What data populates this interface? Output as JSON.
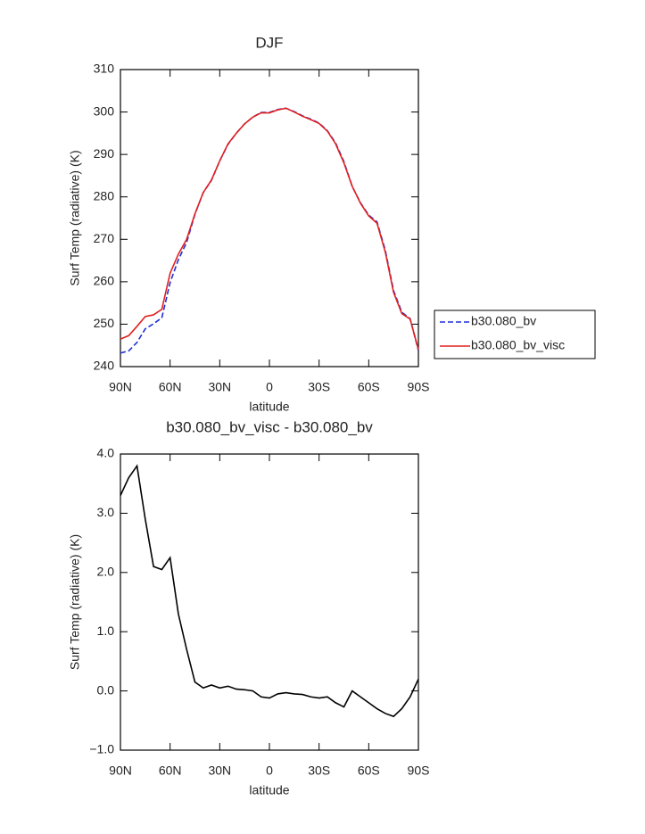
{
  "chart_data": [
    {
      "type": "line",
      "title": "DJF",
      "xlabel": "latitude",
      "ylabel": "Surf Temp (radiative) (K)",
      "x": [
        90,
        85,
        80,
        75,
        70,
        65,
        60,
        55,
        50,
        45,
        40,
        35,
        30,
        25,
        20,
        15,
        10,
        5,
        0,
        -5,
        -10,
        -15,
        -20,
        -25,
        -30,
        -35,
        -40,
        -45,
        -50,
        -55,
        -60,
        -65,
        -70,
        -75,
        -80,
        -85,
        -90
      ],
      "xlim": [
        90,
        -90
      ],
      "xticks": [
        {
          "value": 90,
          "label": "90N"
        },
        {
          "value": 60,
          "label": "60N"
        },
        {
          "value": 30,
          "label": "30N"
        },
        0,
        {
          "value": -30,
          "label": "30S"
        },
        {
          "value": -60,
          "label": "60S"
        },
        {
          "value": -90,
          "label": "90S"
        }
      ],
      "ylim": [
        240,
        310
      ],
      "yticks": [
        240,
        250,
        260,
        270,
        280,
        290,
        300,
        310
      ],
      "legend": "right",
      "series": [
        {
          "name": "b30.080_bv",
          "color": "#1f2fd6",
          "dash": true,
          "values": [
            243.2,
            243.7,
            245.7,
            248.9,
            250.1,
            251.5,
            259.8,
            265.2,
            269.3,
            275.9,
            281.0,
            283.9,
            288.5,
            292.4,
            295.0,
            297.2,
            298.8,
            299.9,
            299.9,
            300.6,
            300.9,
            300.1,
            299.1,
            298.3,
            297.4,
            295.6,
            292.7,
            288.3,
            282.5,
            278.6,
            275.7,
            274.1,
            267.4,
            257.9,
            252.8,
            251.3,
            243.8
          ]
        },
        {
          "name": "b30.080_bv_visc",
          "color": "#e0201e",
          "dash": false,
          "values": [
            246.5,
            247.3,
            249.5,
            251.8,
            252.2,
            253.5,
            262,
            266.5,
            270,
            276,
            281,
            284,
            288.5,
            292.5,
            295,
            297.2,
            298.8,
            299.8,
            299.8,
            300.5,
            300.9,
            300,
            299,
            298.2,
            297.3,
            295.5,
            292.5,
            288,
            282.5,
            278.5,
            275.5,
            273.8,
            267,
            257.5,
            252.5,
            251.2,
            244
          ]
        }
      ]
    },
    {
      "type": "line",
      "title": "b30.080_bv_visc - b30.080_bv",
      "xlabel": "latitude",
      "ylabel": "Surf Temp (radiative) (K)",
      "x": [
        90,
        85,
        80,
        75,
        70,
        65,
        60,
        55,
        50,
        45,
        40,
        35,
        30,
        25,
        20,
        15,
        10,
        5,
        0,
        -5,
        -10,
        -15,
        -20,
        -25,
        -30,
        -35,
        -40,
        -45,
        -50,
        -55,
        -60,
        -65,
        -70,
        -75,
        -80,
        -85,
        -90
      ],
      "xlim": [
        90,
        -90
      ],
      "xticks": [
        {
          "value": 90,
          "label": "90N"
        },
        {
          "value": 60,
          "label": "60N"
        },
        {
          "value": 30,
          "label": "30N"
        },
        0,
        {
          "value": -30,
          "label": "30S"
        },
        {
          "value": -60,
          "label": "60S"
        },
        {
          "value": -90,
          "label": "90S"
        }
      ],
      "ylim": [
        -1,
        4
      ],
      "yticks": [
        {
          "value": -1,
          "label": "−1.0"
        },
        {
          "value": 0,
          "label": "0.0"
        },
        {
          "value": 1,
          "label": "1.0"
        },
        {
          "value": 2,
          "label": "2.0"
        },
        {
          "value": 3,
          "label": "3.0"
        },
        {
          "value": 4,
          "label": "4.0"
        }
      ],
      "series": [
        {
          "color": "#000000",
          "dash": false,
          "values": [
            3.3,
            3.6,
            3.8,
            2.9,
            2.1,
            2.05,
            2.25,
            1.3,
            0.7,
            0.15,
            0.05,
            0.1,
            0.05,
            0.08,
            0.03,
            0.02,
            0,
            -0.1,
            -0.12,
            -0.05,
            -0.03,
            -0.05,
            -0.06,
            -0.1,
            -0.12,
            -0.1,
            -0.2,
            -0.27,
            0.0,
            -0.1,
            -0.2,
            -0.3,
            -0.38,
            -0.43,
            -0.3,
            -0.1,
            0.2
          ]
        }
      ]
    }
  ]
}
